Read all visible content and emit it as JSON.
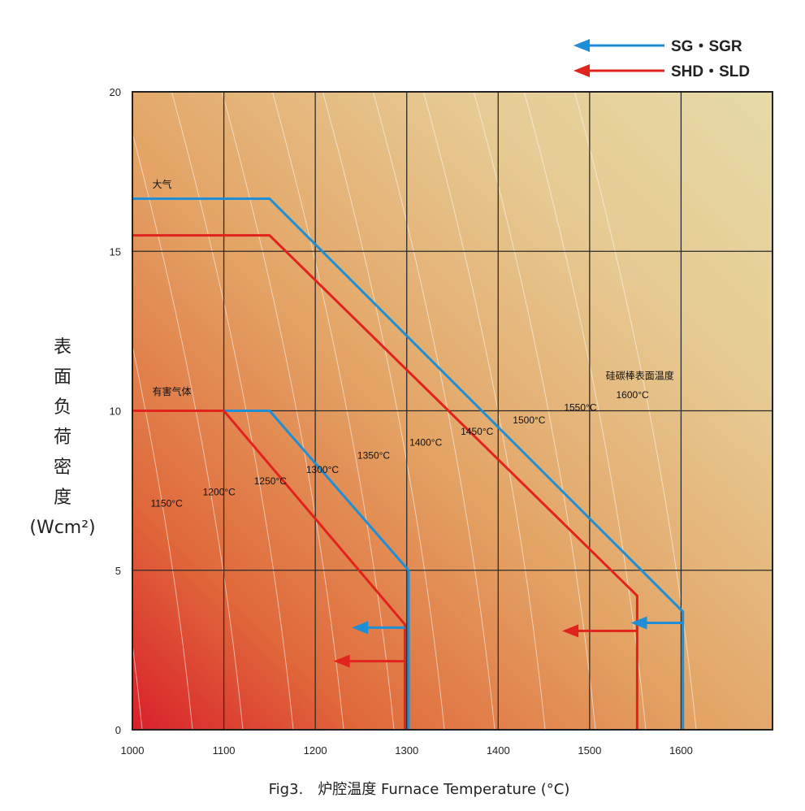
{
  "chart_data": {
    "type": "line",
    "title": "",
    "caption": "Fig3.　炉腔温度 Furnace Temperature (°C)",
    "ylabel_chars": [
      "表",
      "面",
      "负",
      "荷",
      "密",
      "度"
    ],
    "ylabel_unit": "(Wcm²)",
    "xlim": [
      1000,
      1700
    ],
    "ylim": [
      0,
      20
    ],
    "x_ticks": [
      1000,
      1100,
      1200,
      1300,
      1400,
      1500,
      1600
    ],
    "y_ticks": [
      0,
      5,
      10,
      15,
      20
    ],
    "grid": true,
    "legend_position": "top-right",
    "legend": [
      {
        "label": "SG・SGR",
        "color": "#1e8fd6"
      },
      {
        "label": "SHD・SLD",
        "color": "#e0231c"
      }
    ],
    "region_labels": [
      {
        "text": "大气",
        "x": 1020,
        "y": 17.0
      },
      {
        "text": "有害气体",
        "x": 1020,
        "y": 10.5
      }
    ],
    "isotherm_title": "硅碳棒表面温度",
    "isotherm_labels": [
      {
        "text": "1150°C",
        "x": 1020,
        "y": 7.0
      },
      {
        "text": "1200°C",
        "x": 1077,
        "y": 7.35
      },
      {
        "text": "1250°C",
        "x": 1133,
        "y": 7.7
      },
      {
        "text": "1300°C",
        "x": 1190,
        "y": 8.05
      },
      {
        "text": "1350°C",
        "x": 1246,
        "y": 8.5
      },
      {
        "text": "1400°C",
        "x": 1303,
        "y": 8.9
      },
      {
        "text": "1450°C",
        "x": 1359,
        "y": 9.25
      },
      {
        "text": "1500°C",
        "x": 1416,
        "y": 9.6
      },
      {
        "text": "1550°C",
        "x": 1472,
        "y": 10.0
      },
      {
        "text": "1600°C",
        "x": 1529,
        "y": 10.4
      }
    ],
    "series": [
      {
        "name": "SG・SGR",
        "color": "#1e8fd6",
        "x": [
          1000,
          1150,
          1602,
          1602
        ],
        "y": [
          16.65,
          16.65,
          3.7,
          0
        ]
      },
      {
        "name": "SHD・SLD",
        "color": "#e0231c",
        "x": [
          1000,
          1150,
          1552,
          1552
        ],
        "y": [
          15.5,
          15.5,
          4.2,
          0
        ]
      },
      {
        "name": "SG・SGR",
        "color": "#1e8fd6",
        "x": [
          1000,
          1150,
          1302,
          1302
        ],
        "y": [
          10.0,
          10.0,
          5.0,
          0
        ]
      },
      {
        "name": "SHD・SLD",
        "color": "#e0231c",
        "x": [
          1000,
          1100,
          1298,
          1298
        ],
        "y": [
          10.0,
          10.0,
          3.3,
          0
        ]
      }
    ],
    "arrows": [
      {
        "color": "#1e8fd6",
        "y": 3.2,
        "from_x": 1298,
        "to_x": 1240
      },
      {
        "color": "#e0231c",
        "y": 2.15,
        "from_x": 1298,
        "to_x": 1220
      },
      {
        "color": "#e0231c",
        "y": 3.1,
        "from_x": 1552,
        "to_x": 1470
      },
      {
        "color": "#1e8fd6",
        "y": 3.35,
        "from_x": 1602,
        "to_x": 1545
      }
    ]
  }
}
